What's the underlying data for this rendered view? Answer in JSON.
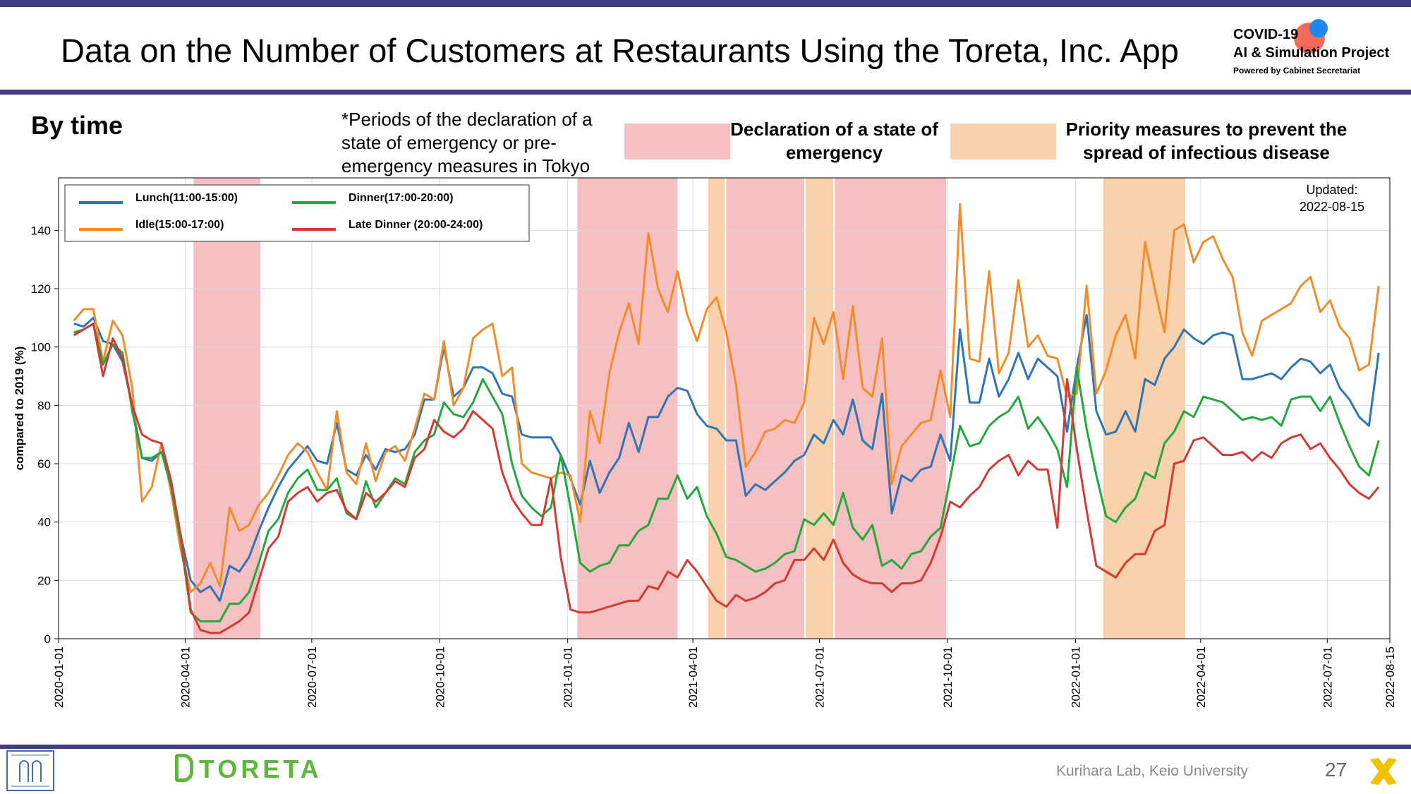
{
  "header": {
    "title": "Data on the Number of Customers at Restaurants Using the Toreta, Inc. App",
    "logo_line1": "COVID-19",
    "logo_line2": "AI & Simulation Project",
    "logo_line3": "Powered by Cabinet Secretariat"
  },
  "section_title": "By time",
  "period_note": "*Periods of the declaration of a state of emergency or pre-emergency measures in Tokyo",
  "period_key": {
    "emergency_label": "Declaration of a state of emergency",
    "priority_label": "Priority measures to prevent the spread of infectious disease"
  },
  "colors": {
    "band": "#3f3c84",
    "emergency": "#f6bfc1",
    "priority": "#f9d1ac",
    "lunch": "#2f75b5",
    "idle": "#f28c2b",
    "dinner": "#23a83d",
    "late_dinner": "#d43a33"
  },
  "chart_data": {
    "type": "line",
    "updated_label": "Updated:",
    "updated_date": "2022-08-15",
    "ylabel": "compared to 2019 (%)",
    "ylim": [
      0,
      158
    ],
    "yticks": [
      "0",
      "20",
      "40",
      "60",
      "80",
      "100",
      "120",
      "140"
    ],
    "xlim": [
      "2020-01-01",
      "2022-08-15"
    ],
    "xticks": [
      "2020-01-01",
      "2020-04-01",
      "2020-07-01",
      "2020-10-01",
      "2021-01-01",
      "2021-04-01",
      "2021-07-01",
      "2021-10-01",
      "2022-01-01",
      "2022-04-01",
      "2022-07-01",
      "2022-08-15"
    ],
    "grid": true,
    "legend_position": "top-left",
    "x_start": "2020-01-12",
    "x_step_days": 7,
    "emergency_periods": [
      [
        "2020-04-07",
        "2020-05-25"
      ],
      [
        "2021-01-08",
        "2021-03-21"
      ],
      [
        "2021-04-25",
        "2021-06-20"
      ],
      [
        "2021-07-12",
        "2021-09-30"
      ]
    ],
    "priority_periods": [
      [
        "2021-04-12",
        "2021-04-24"
      ],
      [
        "2021-06-21",
        "2021-07-11"
      ],
      [
        "2022-01-21",
        "2022-03-21"
      ]
    ],
    "series": [
      {
        "name": "Lunch(11:00-15:00)",
        "key": "lunch",
        "values": [
          108,
          107,
          110,
          102,
          101,
          95,
          80,
          62,
          61,
          64,
          53,
          35,
          20,
          16,
          18,
          13,
          25,
          23,
          28,
          37,
          45,
          52,
          58,
          62,
          66,
          61,
          60,
          74,
          58,
          56,
          63,
          58,
          65,
          64,
          65,
          70,
          82,
          82,
          100,
          83,
          86,
          93,
          93,
          91,
          84,
          83,
          70,
          69,
          69,
          69,
          63,
          55,
          46,
          61,
          50,
          57,
          62,
          74,
          64,
          76,
          76,
          83,
          86,
          85,
          77,
          73,
          72,
          68,
          68,
          49,
          53,
          51,
          54,
          57,
          61,
          63,
          70,
          67,
          75,
          70,
          82,
          68,
          65,
          84,
          43,
          56,
          54,
          58,
          59,
          70,
          61,
          106,
          81,
          81,
          96,
          83,
          89,
          98,
          89,
          96,
          93,
          90,
          71,
          93,
          111,
          78,
          70,
          71,
          78,
          71,
          89,
          87,
          96,
          100,
          106,
          103,
          101,
          104,
          105,
          104,
          89,
          89,
          90,
          91,
          89,
          93,
          96,
          95,
          91,
          94,
          86,
          82,
          76,
          73,
          98
        ]
      },
      {
        "name": "Idle(15:00-17:00)",
        "key": "idle",
        "values": [
          109,
          113,
          113,
          95,
          109,
          104,
          86,
          47,
          52,
          67,
          50,
          30,
          16,
          19,
          26,
          18,
          45,
          37,
          39,
          46,
          50,
          56,
          63,
          67,
          64,
          57,
          51,
          78,
          57,
          53,
          67,
          54,
          64,
          66,
          61,
          72,
          84,
          82,
          102,
          80,
          86,
          103,
          106,
          108,
          90,
          93,
          60,
          57,
          56,
          55,
          57,
          56,
          40,
          78,
          67,
          91,
          105,
          115,
          101,
          139,
          120,
          112,
          126,
          111,
          102,
          113,
          117,
          105,
          87,
          59,
          64,
          71,
          72,
          75,
          74,
          81,
          110,
          101,
          112,
          89,
          114,
          86,
          83,
          103,
          53,
          66,
          70,
          74,
          75,
          92,
          76,
          149,
          96,
          95,
          126,
          91,
          98,
          123,
          100,
          104,
          97,
          96,
          83,
          84,
          121,
          84,
          92,
          104,
          111,
          96,
          136,
          120,
          105,
          140,
          142,
          129,
          136,
          138,
          130,
          124,
          105,
          97,
          109,
          111,
          113,
          115,
          121,
          124,
          112,
          116,
          107,
          103,
          92,
          94,
          121
        ]
      },
      {
        "name": "Dinner(17:00-20:00)",
        "key": "dinner",
        "values": [
          105,
          106,
          108,
          94,
          101,
          98,
          78,
          62,
          62,
          64,
          52,
          33,
          9,
          6,
          6,
          6,
          12,
          12,
          16,
          26,
          37,
          41,
          50,
          55,
          58,
          51,
          51,
          55,
          43,
          41,
          54,
          45,
          50,
          55,
          53,
          64,
          68,
          70,
          81,
          77,
          76,
          81,
          89,
          83,
          77,
          60,
          49,
          45,
          42,
          45,
          63,
          45,
          26,
          23,
          25,
          26,
          32,
          32,
          37,
          39,
          48,
          48,
          56,
          48,
          52,
          42,
          36,
          28,
          27,
          25,
          23,
          24,
          26,
          29,
          30,
          41,
          39,
          43,
          39,
          50,
          38,
          34,
          39,
          25,
          27,
          24,
          29,
          30,
          35,
          38,
          55,
          73,
          66,
          67,
          73,
          76,
          78,
          83,
          72,
          76,
          71,
          65,
          52,
          93,
          72,
          56,
          42,
          40,
          45,
          48,
          57,
          55,
          67,
          71,
          78,
          76,
          83,
          82,
          81,
          78,
          75,
          76,
          75,
          76,
          73,
          82,
          83,
          83,
          78,
          83,
          74,
          66,
          59,
          56,
          68
        ]
      },
      {
        "name": "Late Dinner (20:00-24:00)",
        "key": "late_dinner",
        "values": [
          104,
          106,
          108,
          90,
          103,
          96,
          80,
          70,
          68,
          67,
          54,
          35,
          10,
          3,
          2,
          2,
          4,
          6,
          9,
          20,
          31,
          35,
          47,
          50,
          52,
          47,
          50,
          51,
          44,
          41,
          50,
          47,
          50,
          54,
          52,
          62,
          65,
          75,
          71,
          69,
          72,
          78,
          75,
          72,
          57,
          48,
          43,
          39,
          39,
          55,
          28,
          10,
          9,
          9,
          10,
          11,
          12,
          13,
          13,
          18,
          17,
          23,
          21,
          27,
          23,
          18,
          13,
          11,
          15,
          13,
          14,
          16,
          19,
          20,
          27,
          27,
          31,
          27,
          34,
          26,
          22,
          20,
          19,
          19,
          16,
          19,
          19,
          20,
          26,
          35,
          47,
          45,
          49,
          52,
          58,
          61,
          63,
          56,
          61,
          58,
          58,
          38,
          89,
          65,
          44,
          25,
          23,
          21,
          26,
          29,
          29,
          37,
          39,
          60,
          61,
          68,
          69,
          66,
          63,
          63,
          64,
          61,
          64,
          62,
          67,
          69,
          70,
          65,
          67,
          62,
          58,
          53,
          50,
          48,
          52
        ]
      }
    ]
  },
  "footer": {
    "toreta": "TORETA",
    "lab_name": "Kurihara Lab, Keio University",
    "page_number": "27"
  }
}
